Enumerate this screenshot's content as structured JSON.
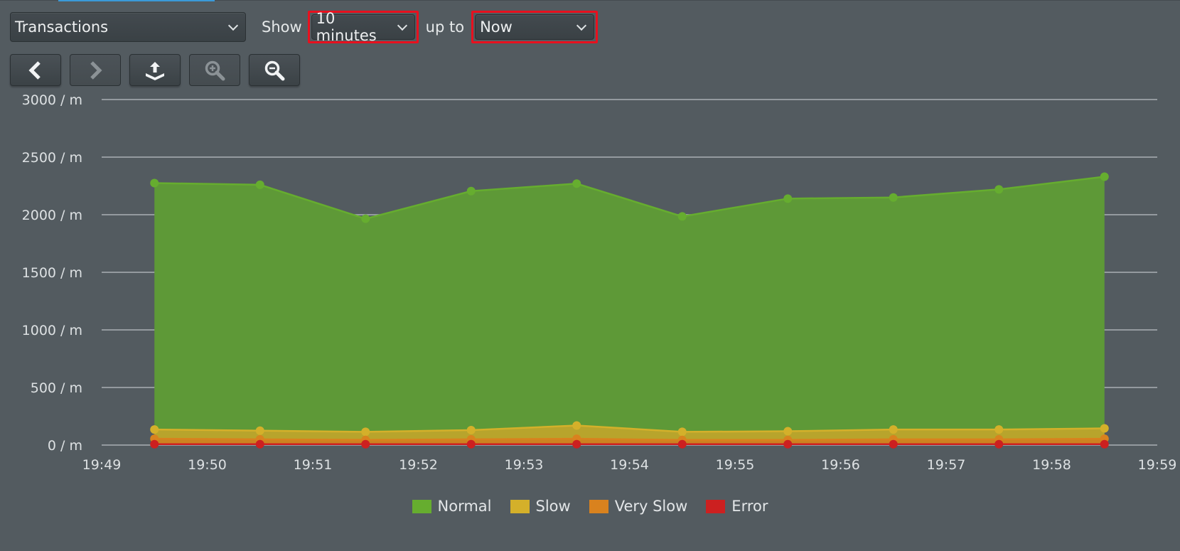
{
  "controls": {
    "dataset": "Transactions",
    "show_label": "Show",
    "range": "10 minutes",
    "upto_label": "up to",
    "upto": "Now"
  },
  "toolbar": [
    {
      "name": "previous-button",
      "icon": "chevron-left-icon",
      "enabled": true
    },
    {
      "name": "next-button",
      "icon": "chevron-right-icon",
      "enabled": false
    },
    {
      "name": "export-button",
      "icon": "upload-tray-icon",
      "enabled": true
    },
    {
      "name": "zoom-in-button",
      "icon": "zoom-in-icon",
      "enabled": false
    },
    {
      "name": "zoom-out-button",
      "icon": "zoom-out-icon",
      "enabled": true
    }
  ],
  "chart_data": {
    "type": "area",
    "y_unit_suffix": " / m",
    "ylim": [
      0,
      3000
    ],
    "yticks": [
      0,
      500,
      1000,
      1500,
      2000,
      2500,
      3000
    ],
    "xlim": [
      "19:49",
      "19:59"
    ],
    "xticks": [
      "19:49",
      "19:50",
      "19:51",
      "19:52",
      "19:53",
      "19:54",
      "19:55",
      "19:56",
      "19:57",
      "19:58",
      "19:59"
    ],
    "x": [
      "19:49:30",
      "19:50:30",
      "19:51:30",
      "19:52:30",
      "19:53:30",
      "19:54:30",
      "19:55:30",
      "19:56:30",
      "19:57:30",
      "19:58:30"
    ],
    "grid": true,
    "legend_position": "bottom-center",
    "series": [
      {
        "name": "Normal",
        "color": "#5e9937",
        "line_color": "#66ad2f",
        "values": [
          2275,
          2260,
          1965,
          2205,
          2270,
          1985,
          2140,
          2150,
          2220,
          2330
        ]
      },
      {
        "name": "Slow",
        "color": "#c8a62a",
        "line_color": "#d4b02a",
        "values": [
          135,
          125,
          115,
          130,
          170,
          115,
          120,
          135,
          135,
          145
        ]
      },
      {
        "name": "Very Slow",
        "color": "#cf7d20",
        "line_color": "#d9821e",
        "values": [
          55,
          50,
          45,
          50,
          55,
          45,
          45,
          50,
          50,
          55
        ]
      },
      {
        "name": "Error",
        "color": "#c0201f",
        "line_color": "#cc2020",
        "values": [
          8,
          8,
          8,
          8,
          8,
          8,
          8,
          8,
          8,
          8
        ]
      }
    ]
  }
}
